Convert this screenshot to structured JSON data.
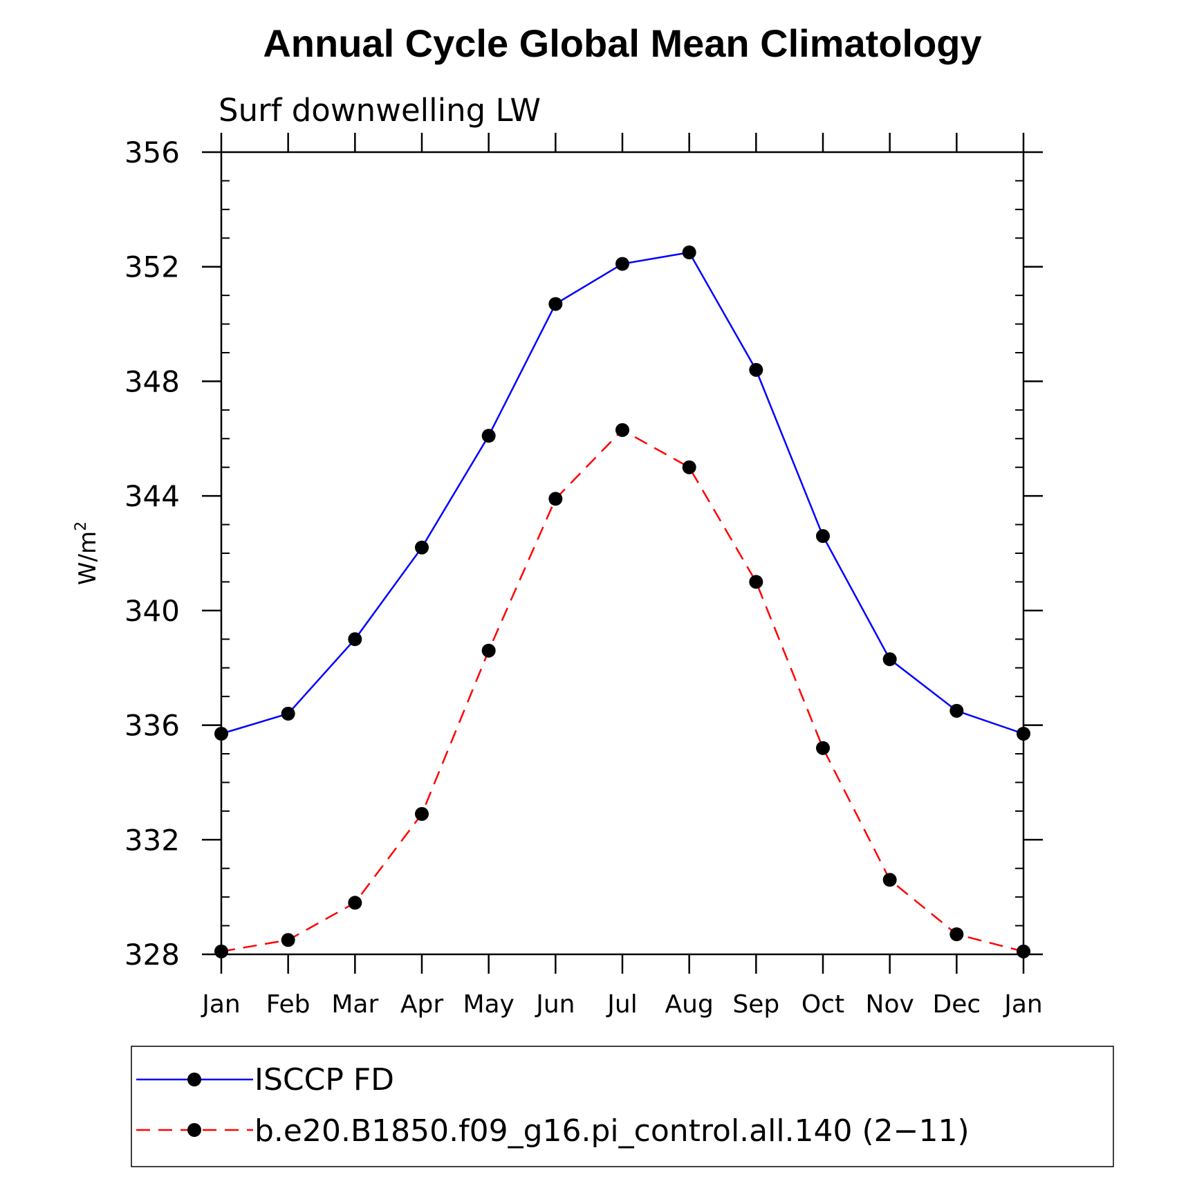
{
  "chart_data": {
    "type": "line",
    "title": "Annual Cycle Global Mean Climatology",
    "subtitle": "Surf downwelling LW",
    "ylabel": "W/m",
    "ylabel_sup": "2",
    "xlabel": "",
    "categories": [
      "Jan",
      "Feb",
      "Mar",
      "Apr",
      "May",
      "Jun",
      "Jul",
      "Aug",
      "Sep",
      "Oct",
      "Nov",
      "Dec",
      "Jan"
    ],
    "ylim": [
      328,
      356
    ],
    "yticks": [
      328,
      332,
      336,
      340,
      344,
      348,
      352,
      356
    ],
    "series": [
      {
        "name": "ISCCP FD",
        "color": "#0000ff",
        "dash": "solid",
        "marker": "filled-circle",
        "values": [
          335.7,
          336.4,
          339.0,
          342.2,
          346.1,
          350.7,
          352.1,
          352.5,
          348.4,
          342.6,
          338.3,
          336.5,
          335.7
        ]
      },
      {
        "name": "b.e20.B1850.f09_g16.pi_control.all.140 (2−11)",
        "color": "#ff0000",
        "dash": "dashed",
        "marker": "filled-circle",
        "values": [
          328.1,
          328.5,
          329.8,
          332.9,
          338.6,
          343.9,
          346.3,
          345.0,
          341.0,
          335.2,
          330.6,
          328.7,
          328.1
        ]
      }
    ],
    "grid": false,
    "legend_position": "bottom"
  }
}
